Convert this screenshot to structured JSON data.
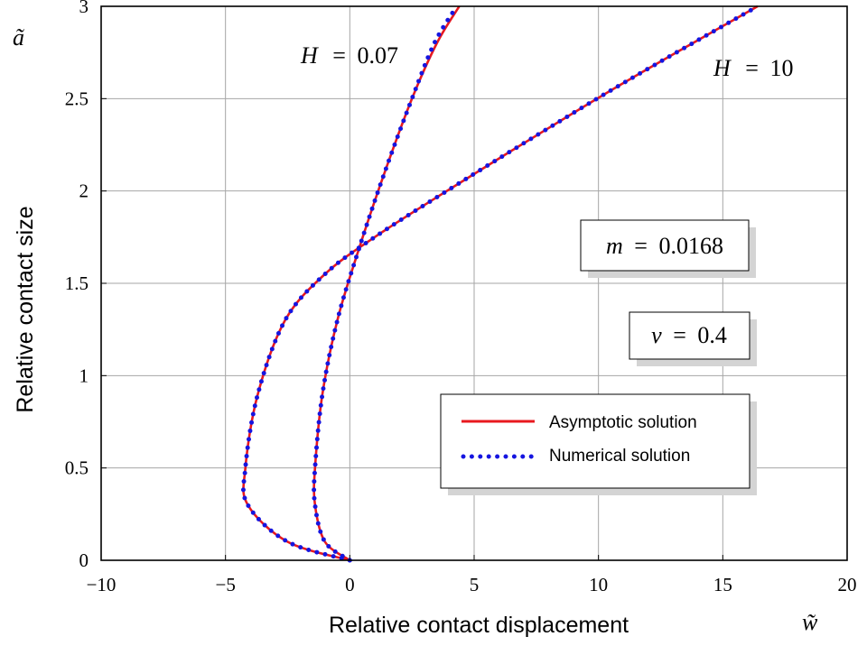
{
  "chart_data": {
    "type": "line",
    "xlabel": "Relative contact displacement",
    "ylabel": "Relative contact size",
    "x_symbol": "w̃",
    "y_symbol": "ã",
    "xlim": [
      -10,
      20
    ],
    "ylim": [
      0,
      3
    ],
    "x_ticks": [
      -10,
      -5,
      0,
      5,
      10,
      15,
      20
    ],
    "y_ticks": [
      0,
      0.5,
      1,
      1.5,
      2,
      2.5,
      3
    ],
    "x_tick_labels": [
      "−10",
      "−5",
      "0",
      "5",
      "10",
      "15",
      "20"
    ],
    "y_tick_labels": [
      "0",
      "0.5",
      "1",
      "1.5",
      "2",
      "2.5",
      "3"
    ],
    "grid": true,
    "legend_position": "lower-right",
    "annotations": {
      "curve_low_h": {
        "var": "H",
        "eq": "=",
        "val": "0.07"
      },
      "curve_high_h": {
        "var": "H",
        "eq": "=",
        "val": "10"
      },
      "param_m": {
        "var": "m",
        "eq": "=",
        "val": "0.0168"
      },
      "param_nu": {
        "var": "ν",
        "eq": "=",
        "val": "0.4"
      }
    },
    "series": [
      {
        "name": "Asymptotic solution",
        "color": "#e8191f",
        "style": "solid",
        "curves": [
          {
            "label": "H = 0.07",
            "x": [
              0.0,
              -1.0,
              -1.4,
              -1.4,
              -1.1,
              -0.5,
              0.4,
              1.4,
              2.5,
              3.5,
              4.4
            ],
            "y": [
              0.0,
              0.1,
              0.3,
              0.5,
              0.9,
              1.3,
              1.7,
              2.1,
              2.5,
              2.8,
              3.0
            ]
          },
          {
            "label": "H = 10",
            "x": [
              0.0,
              -2.5,
              -4.1,
              -4.2,
              -3.7,
              -2.6,
              -1.0,
              1.0,
              3.9,
              7.5,
              11.2,
              16.4
            ],
            "y": [
              0.0,
              0.1,
              0.3,
              0.5,
              0.9,
              1.3,
              1.55,
              1.75,
              2.0,
              2.3,
              2.6,
              3.0
            ]
          }
        ]
      },
      {
        "name": "Numerical solution",
        "color": "#1515e0",
        "style": "dotted",
        "curves": [
          {
            "label": "H = 0.07",
            "x": [
              0.0,
              -1.0,
              -1.4,
              -1.4,
              -1.1,
              -0.5,
              0.4,
              1.4,
              2.5,
              3.4,
              4.3
            ],
            "y": [
              0.0,
              0.1,
              0.3,
              0.5,
              0.9,
              1.3,
              1.7,
              2.1,
              2.5,
              2.8,
              3.0
            ]
          },
          {
            "label": "H = 10",
            "x": [
              0.0,
              -2.5,
              -4.1,
              -4.2,
              -3.7,
              -2.6,
              -1.0,
              1.0,
              3.9,
              7.5,
              11.2,
              16.4
            ],
            "y": [
              0.0,
              0.1,
              0.3,
              0.5,
              0.9,
              1.3,
              1.55,
              1.75,
              2.0,
              2.3,
              2.6,
              3.0
            ]
          }
        ]
      }
    ]
  }
}
